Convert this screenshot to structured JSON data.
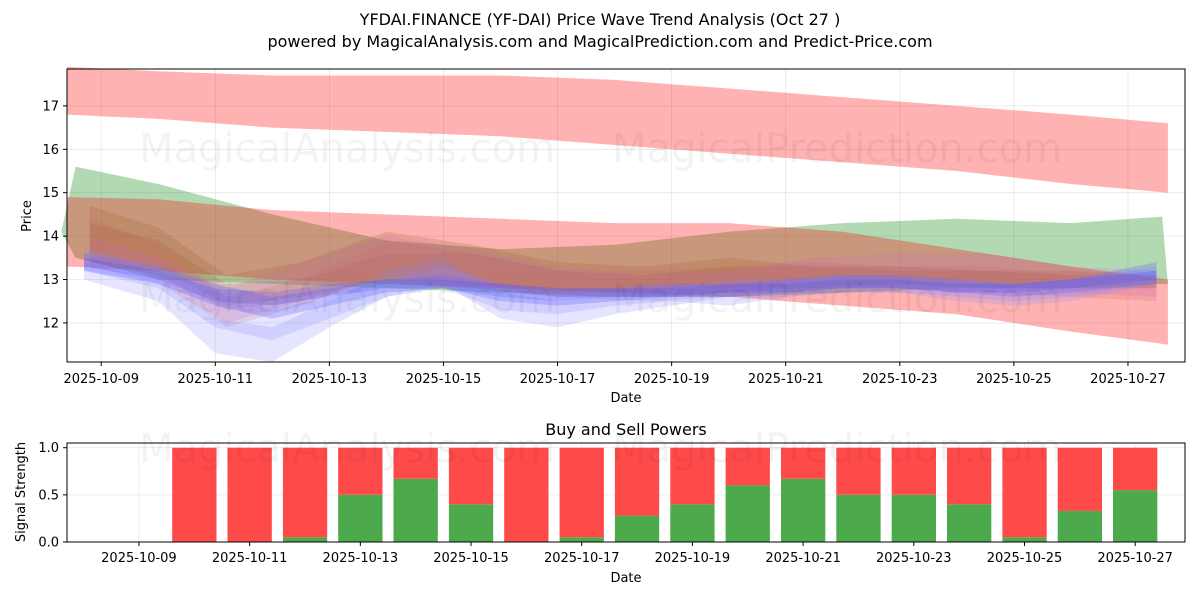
{
  "figure": {
    "title_line1": "YFDAI.FINANCE (YF-DAI) Price Wave Trend Analysis (Oct 27 )",
    "title_line2": "powered by MagicalAnalysis.com and MagicalPrediction.com and Predict-Price.com",
    "watermarks": [
      "MagicalAnalysis.com",
      "MagicalPrediction.com"
    ]
  },
  "chart_data": [
    {
      "type": "area",
      "title": "YFDAI.FINANCE (YF-DAI) Price Wave Trend Analysis (Oct 27 )",
      "xlabel": "Date",
      "ylabel": "Price",
      "xlim_days": [
        -0.6,
        19.0
      ],
      "ylim": [
        11.1,
        17.85
      ],
      "grid": true,
      "x_ticks": [
        {
          "day": 0,
          "label": "2025-10-09"
        },
        {
          "day": 2,
          "label": "2025-10-11"
        },
        {
          "day": 4,
          "label": "2025-10-13"
        },
        {
          "day": 6,
          "label": "2025-10-15"
        },
        {
          "day": 8,
          "label": "2025-10-17"
        },
        {
          "day": 10,
          "label": "2025-10-19"
        },
        {
          "day": 12,
          "label": "2025-10-21"
        },
        {
          "day": 14,
          "label": "2025-10-23"
        },
        {
          "day": 16,
          "label": "2025-10-25"
        },
        {
          "day": 18,
          "label": "2025-10-27"
        }
      ],
      "y_ticks": [
        12,
        13,
        14,
        15,
        16,
        17
      ],
      "bands": [
        {
          "color": "#ff0000",
          "opacity": 0.3,
          "x": [
            -0.6,
            1,
            3,
            5,
            7,
            9,
            11,
            13,
            15,
            17,
            18.7
          ],
          "upper": [
            17.9,
            17.8,
            17.7,
            17.7,
            17.7,
            17.6,
            17.4,
            17.2,
            17.0,
            16.8,
            16.6
          ],
          "lower": [
            16.8,
            16.7,
            16.5,
            16.4,
            16.3,
            16.1,
            15.9,
            15.7,
            15.5,
            15.2,
            15.0
          ]
        },
        {
          "color": "#008000",
          "opacity": 0.3,
          "x": [
            -0.7,
            -0.45,
            1,
            3,
            5,
            7,
            9,
            11,
            13,
            15,
            17,
            18.6,
            18.7
          ],
          "upper": [
            14.1,
            15.6,
            15.2,
            14.5,
            13.9,
            13.7,
            13.8,
            14.1,
            14.3,
            14.4,
            14.3,
            14.45,
            12.9
          ],
          "lower": [
            14.1,
            13.5,
            13.0,
            12.9,
            12.8,
            12.7,
            12.6,
            12.6,
            12.7,
            12.8,
            12.8,
            12.9,
            12.9
          ]
        },
        {
          "color": "#ff0000",
          "opacity": 0.3,
          "x": [
            -0.6,
            1,
            3,
            5,
            7,
            9,
            11,
            13,
            15,
            17,
            18.7
          ],
          "upper": [
            14.9,
            14.85,
            14.6,
            14.5,
            14.4,
            14.3,
            14.3,
            14.1,
            13.7,
            13.3,
            13.0
          ],
          "lower": [
            13.3,
            13.2,
            13.0,
            12.9,
            12.8,
            12.7,
            12.6,
            12.4,
            12.2,
            11.8,
            11.5
          ]
        },
        {
          "color": "#996633",
          "opacity": 0.22,
          "x": [
            -0.2,
            1,
            2.2,
            3.5,
            5,
            6.5,
            8,
            9.5,
            11,
            12.5,
            14,
            15.5,
            17,
            18.5
          ],
          "upper": [
            14.7,
            14.2,
            13.1,
            13.4,
            14.1,
            13.8,
            13.4,
            13.3,
            13.5,
            13.3,
            13.3,
            13.2,
            13.1,
            13.1
          ],
          "lower": [
            13.6,
            13.3,
            12.4,
            12.6,
            13.0,
            12.9,
            12.7,
            12.7,
            12.8,
            12.8,
            12.9,
            12.8,
            12.8,
            12.8
          ]
        },
        {
          "color": "#996633",
          "opacity": 0.22,
          "x": [
            -0.2,
            1,
            2.2,
            3.5,
            5,
            6.5,
            8,
            9.5,
            11,
            12.5,
            14,
            15.5,
            17,
            18.5
          ],
          "upper": [
            14.3,
            13.9,
            12.9,
            13.0,
            13.6,
            13.6,
            13.2,
            13.1,
            13.3,
            13.3,
            13.2,
            13.2,
            13.2,
            13.1
          ],
          "lower": [
            13.4,
            13.1,
            12.3,
            12.5,
            12.9,
            12.8,
            12.6,
            12.6,
            12.7,
            12.8,
            12.9,
            12.8,
            12.8,
            12.8
          ]
        },
        {
          "color": "#cc6666",
          "opacity": 0.2,
          "x": [
            -0.2,
            1,
            2.2,
            3.5,
            5,
            6.5,
            8,
            9.5,
            11,
            12.5,
            14,
            15.5,
            17,
            18.5
          ],
          "upper": [
            14.4,
            13.8,
            12.6,
            13.0,
            13.9,
            13.6,
            13.2,
            13.2,
            13.3,
            13.4,
            13.3,
            13.3,
            13.1,
            13.0
          ],
          "lower": [
            13.6,
            13.0,
            11.9,
            12.4,
            13.1,
            12.9,
            12.6,
            12.6,
            12.7,
            12.9,
            12.8,
            12.7,
            12.6,
            12.5
          ]
        },
        {
          "color": "#cc66cc",
          "opacity": 0.18,
          "x": [
            -0.2,
            1,
            2.2,
            3.5,
            5,
            6.5,
            8,
            9.5,
            11,
            12.5,
            14,
            15.5,
            17,
            18.5
          ],
          "upper": [
            14.0,
            13.5,
            12.8,
            13.4,
            14.0,
            13.7,
            13.3,
            13.1,
            13.2,
            13.5,
            13.6,
            13.6,
            13.3,
            13.2
          ],
          "lower": [
            13.3,
            12.9,
            12.0,
            12.5,
            13.1,
            12.8,
            12.6,
            12.5,
            12.6,
            12.9,
            13.0,
            12.9,
            12.7,
            12.6
          ]
        },
        {
          "color": "#8888ff",
          "opacity": 0.22,
          "x": [
            -0.3,
            1,
            2,
            3,
            4,
            5,
            6,
            7,
            8,
            9,
            10,
            11,
            12,
            13,
            14,
            15,
            16,
            17,
            18.5
          ],
          "upper": [
            13.4,
            13.0,
            12.1,
            11.9,
            12.5,
            13.2,
            13.5,
            12.7,
            12.5,
            12.6,
            12.8,
            13.0,
            13.0,
            13.1,
            13.1,
            13.0,
            12.9,
            13.0,
            13.2
          ],
          "lower": [
            13.0,
            12.5,
            11.3,
            11.1,
            11.9,
            12.6,
            12.9,
            12.1,
            11.9,
            12.2,
            12.4,
            12.6,
            12.6,
            12.7,
            12.7,
            12.5,
            12.4,
            12.5,
            12.9
          ]
        },
        {
          "color": "#8888ff",
          "opacity": 0.22,
          "x": [
            -0.3,
            1,
            2,
            3,
            4,
            5,
            6,
            7,
            8,
            9,
            10,
            11,
            12,
            13,
            14,
            15,
            16,
            17,
            18.5
          ],
          "upper": [
            13.7,
            13.3,
            12.7,
            12.3,
            12.6,
            13.0,
            13.3,
            12.9,
            12.7,
            12.8,
            12.9,
            12.8,
            13.0,
            13.1,
            13.0,
            13.0,
            12.9,
            13.0,
            13.3
          ],
          "lower": [
            13.2,
            12.8,
            11.9,
            11.6,
            12.1,
            12.6,
            12.8,
            12.3,
            12.2,
            12.4,
            12.5,
            12.4,
            12.6,
            12.7,
            12.7,
            12.6,
            12.5,
            12.6,
            12.9
          ]
        },
        {
          "color": "#6666ff",
          "opacity": 0.3,
          "x": [
            -0.3,
            1,
            2,
            3,
            4,
            5,
            6,
            7,
            8,
            9,
            10,
            11,
            12,
            13,
            14,
            15,
            16,
            17,
            18.5
          ],
          "upper": [
            13.6,
            13.3,
            12.9,
            12.6,
            12.8,
            13.0,
            13.1,
            12.9,
            12.8,
            12.8,
            12.9,
            12.9,
            13.0,
            13.1,
            13.1,
            13.0,
            12.9,
            13.0,
            13.4
          ],
          "lower": [
            13.2,
            12.9,
            12.4,
            12.1,
            12.4,
            12.7,
            12.8,
            12.5,
            12.4,
            12.5,
            12.6,
            12.6,
            12.7,
            12.8,
            12.8,
            12.7,
            12.6,
            12.7,
            12.9
          ]
        },
        {
          "color": "#4444ff",
          "opacity": 0.2,
          "x": [
            -0.3,
            1,
            2,
            3,
            4,
            5,
            6,
            7,
            8,
            9,
            10,
            11,
            12,
            13,
            14,
            15,
            16,
            17,
            18.5
          ],
          "upper": [
            13.5,
            13.2,
            12.8,
            12.7,
            12.9,
            13.0,
            13.0,
            12.9,
            12.8,
            12.8,
            12.8,
            12.9,
            12.9,
            13.0,
            13.0,
            12.9,
            12.9,
            13.0,
            13.2
          ],
          "lower": [
            13.3,
            13.0,
            12.5,
            12.4,
            12.6,
            12.8,
            12.8,
            12.6,
            12.5,
            12.6,
            12.6,
            12.7,
            12.7,
            12.8,
            12.8,
            12.7,
            12.7,
            12.8,
            13.0
          ]
        }
      ]
    },
    {
      "type": "bar",
      "title": "Buy and Sell Powers",
      "xlabel": "Date",
      "ylabel": "Signal Strength",
      "xlim_days": [
        -1.3,
        18.9
      ],
      "ylim": [
        0,
        1.05
      ],
      "grid": true,
      "x_ticks": [
        {
          "day": 0,
          "label": "2025-10-09"
        },
        {
          "day": 2,
          "label": "2025-10-11"
        },
        {
          "day": 4,
          "label": "2025-10-13"
        },
        {
          "day": 6,
          "label": "2025-10-15"
        },
        {
          "day": 8,
          "label": "2025-10-17"
        },
        {
          "day": 10,
          "label": "2025-10-19"
        },
        {
          "day": 12,
          "label": "2025-10-21"
        },
        {
          "day": 14,
          "label": "2025-10-23"
        },
        {
          "day": 16,
          "label": "2025-10-25"
        },
        {
          "day": 18,
          "label": "2025-10-27"
        }
      ],
      "y_ticks": [
        {
          "value": 0.0,
          "label": "0.0"
        },
        {
          "value": 0.5,
          "label": "0.5"
        },
        {
          "value": 1.0,
          "label": "1.0"
        }
      ],
      "buy_color": "#4caa4c",
      "sell_color": "#ff4a4a",
      "days": [
        1,
        2,
        3,
        4,
        5,
        6,
        7,
        8,
        9,
        10,
        11,
        12,
        13,
        14,
        15,
        16,
        17,
        18
      ],
      "series": [
        {
          "name": "Buy",
          "values": [
            0.0,
            0.0,
            0.05,
            0.5,
            0.67,
            0.4,
            0.0,
            0.05,
            0.28,
            0.4,
            0.6,
            0.67,
            0.5,
            0.5,
            0.4,
            0.05,
            0.33,
            0.55
          ]
        },
        {
          "name": "Sell",
          "values": [
            1.0,
            1.0,
            0.95,
            0.5,
            0.33,
            0.6,
            1.0,
            0.95,
            0.72,
            0.6,
            0.4,
            0.33,
            0.5,
            0.5,
            0.6,
            0.95,
            0.67,
            0.45
          ]
        }
      ]
    }
  ]
}
